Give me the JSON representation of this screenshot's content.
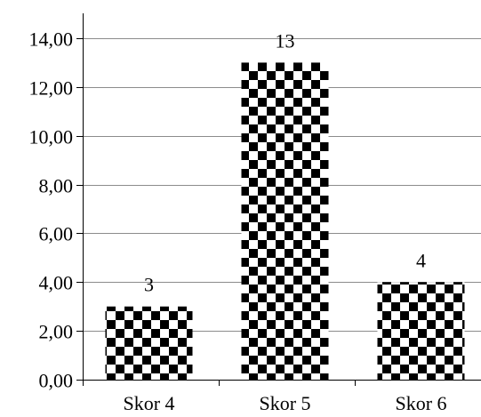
{
  "chart_data": {
    "type": "bar",
    "categories": [
      "Skor 4",
      "Skor 5",
      "Skor 6"
    ],
    "values": [
      3,
      13,
      4
    ],
    "data_labels": [
      "3",
      "13",
      "4"
    ],
    "ylim": [
      0,
      14
    ],
    "y_ticks": [
      0,
      2,
      4,
      6,
      8,
      10,
      12,
      14
    ],
    "y_tick_labels": [
      "0,00",
      "2,00",
      "4,00",
      "6,00",
      "8,00",
      "10,00",
      "12,00",
      "14,00"
    ],
    "title": "",
    "xlabel": "",
    "ylabel": "",
    "grid": true,
    "legend": "none",
    "bar_fill": "checkerboard",
    "colors": {
      "bar_dark": "#000000",
      "bar_light": "#ffffff",
      "grid": "#8c8c8c",
      "axis": "#000000"
    }
  }
}
